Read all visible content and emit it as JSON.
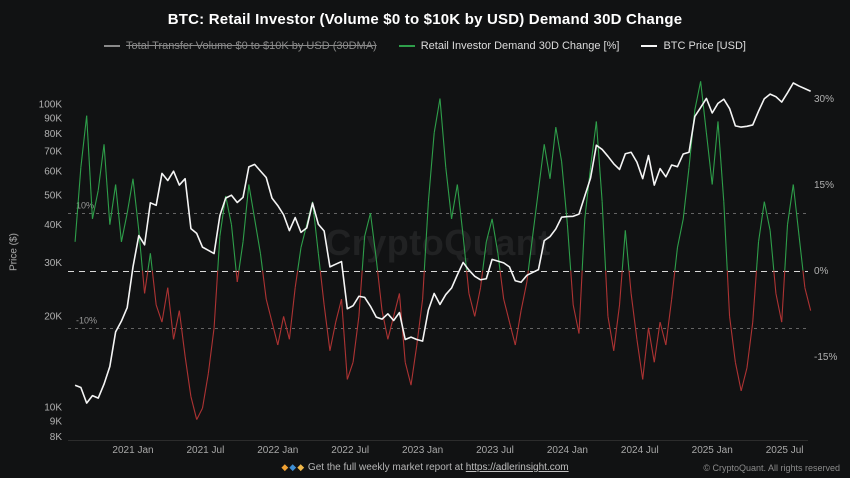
{
  "header": {
    "title": "BTC: Retail Investor (Volume $0 to $10K by USD) Demand 30D Change"
  },
  "watermark": {
    "text": "CryptoQuant"
  },
  "footer": {
    "diamonds": [
      {
        "char": "◆",
        "color": "#f0a132"
      },
      {
        "char": "◆",
        "color": "#3f8fd4"
      },
      {
        "char": "◆",
        "color": "#f0b84a"
      }
    ],
    "report_text": "Get the full weekly market report at",
    "report_link": "https://adlerinsight.com",
    "copyright": "© CryptoQuant. All rights reserved"
  },
  "chart_data": {
    "type": "line",
    "title": "BTC: Retail Investor (Volume $0 to $10K by USD) Demand 30D Change",
    "legend_position": "top",
    "grid": "off",
    "series": [
      {
        "name": "Total Transfer Volume $0 to $10K by USD (30DMA)",
        "color": "#8a8a8a",
        "disabled": true
      },
      {
        "name": "Retail Investor Demand 30D Change [%]",
        "color": "#2e9e4a",
        "color_negative": "#ad3333",
        "axis": "percent"
      },
      {
        "name": "BTC Price [USD]",
        "color": "#f5f5f5",
        "axis": "price"
      }
    ],
    "x_start": 2020.6,
    "x_step": 0.04,
    "price_axis": {
      "label": "Price ($)",
      "scale": "log",
      "unit": "K",
      "ticks": [
        8,
        9,
        10,
        20,
        30,
        40,
        50,
        60,
        70,
        80,
        90,
        100
      ]
    },
    "percent_axis": {
      "ticks": [
        30,
        15,
        0,
        -15
      ],
      "range": [
        -29,
        34
      ]
    },
    "ref_lines": [
      {
        "value": 10,
        "label": "10%"
      },
      {
        "value": 0,
        "label": ""
      },
      {
        "value": -10,
        "label": "-10%"
      }
    ],
    "x_ticks": [
      {
        "t": 2021.0,
        "label": "2021 Jan"
      },
      {
        "t": 2021.5,
        "label": "2021 Jul"
      },
      {
        "t": 2022.0,
        "label": "2022 Jan"
      },
      {
        "t": 2022.5,
        "label": "2022 Jul"
      },
      {
        "t": 2023.0,
        "label": "2023 Jan"
      },
      {
        "t": 2023.5,
        "label": "2023 Jul"
      },
      {
        "t": 2024.0,
        "label": "2024 Jan"
      },
      {
        "t": 2024.5,
        "label": "2024 Jul"
      },
      {
        "t": 2025.0,
        "label": "2025 Jan"
      },
      {
        "t": 2025.5,
        "label": "2025 Jul"
      }
    ],
    "price_k": [
      11.8,
      11.6,
      10.3,
      10.9,
      10.7,
      11.9,
      13.6,
      17.7,
      19.2,
      21.3,
      29.0,
      36.8,
      34.3,
      47.2,
      46.3,
      59.0,
      55.9,
      60.0,
      54.0,
      56.7,
      38.8,
      37.4,
      33.7,
      32.9,
      32.1,
      42.8,
      48.9,
      50.0,
      47.3,
      49.2,
      62.0,
      63.2,
      60.1,
      57.2,
      48.9,
      46.2,
      43.1,
      38.2,
      42.2,
      37.7,
      39.0,
      47.1,
      40.1,
      38.1,
      29.0,
      29.6,
      30.2,
      21.1,
      21.6,
      23.2,
      23.0,
      21.5,
      19.8,
      19.5,
      20.3,
      19.3,
      20.5,
      16.7,
      17.0,
      16.7,
      16.5,
      20.9,
      23.7,
      21.8,
      23.5,
      24.7,
      27.3,
      30.0,
      28.3,
      27.0,
      26.3,
      26.5,
      30.7,
      30.3,
      29.9,
      29.0,
      26.1,
      25.8,
      27.2,
      27.8,
      28.4,
      35.4,
      36.5,
      38.7,
      42.3,
      42.5,
      42.6,
      43.3,
      49.7,
      57.0,
      73.1,
      70.8,
      67.2,
      63.5,
      60.8,
      68.5,
      69.3,
      64.3,
      56.7,
      67.6,
      54.0,
      61.2,
      57.5,
      62.9,
      62.1,
      68.4,
      69.3,
      91.0,
      97.3,
      104.3,
      93.4,
      100.5,
      103.7,
      96.6,
      84.7,
      83.9,
      84.4,
      85.3,
      94.7,
      104.1,
      107.8,
      105.7,
      101.5,
      108.9,
      117.3,
      114.6,
      112.4,
      110.2
    ],
    "demand_pct": [
      5,
      18,
      27,
      9,
      14,
      22,
      8,
      15,
      5,
      10,
      16,
      7,
      -4,
      3,
      -6,
      -9,
      -3,
      -12,
      -7,
      -15,
      -22,
      -26,
      -24,
      -18,
      -10,
      6,
      13,
      8,
      -2,
      5,
      15,
      9,
      3,
      -5,
      -9,
      -13,
      -8,
      -12,
      -3,
      4,
      8,
      12,
      3,
      -6,
      -14,
      -9,
      -5,
      -19,
      -16,
      -8,
      6,
      10,
      2,
      -7,
      -12,
      -8,
      -4,
      -16,
      -20,
      -13,
      -5,
      12,
      24,
      30,
      18,
      9,
      15,
      6,
      -4,
      -8,
      -3,
      5,
      9,
      3,
      -5,
      -9,
      -13,
      -7,
      -2,
      6,
      14,
      22,
      16,
      25,
      19,
      8,
      -6,
      -11,
      9,
      18,
      26,
      12,
      -8,
      -14,
      -6,
      7,
      -4,
      -12,
      -19,
      -10,
      -16,
      -9,
      -13,
      -5,
      4,
      9,
      18,
      28,
      33,
      24,
      15,
      26,
      12,
      -8,
      -16,
      -21,
      -17,
      -9,
      5,
      12,
      7,
      -4,
      -9,
      8,
      15,
      6,
      -3,
      -7
    ]
  }
}
